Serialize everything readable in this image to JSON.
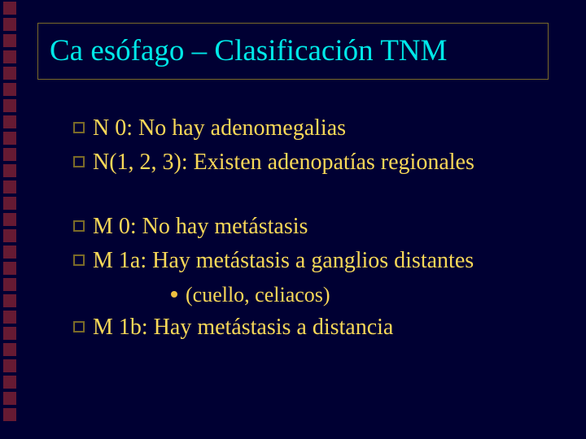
{
  "colors": {
    "background": "#000033",
    "title_border": "#7a6a28",
    "title_text": "#00e8e8",
    "body_text": "#f8d858",
    "bullet_border": "#7a6a28",
    "disc_fill": "#f0c040",
    "left_square": "#661a33"
  },
  "layout": {
    "left_square_count": 26,
    "title_fontsize": 37,
    "body_fontsize": 28,
    "sub_fontsize": 26
  },
  "title": "Ca esófago – Clasificación TNM",
  "groups": [
    {
      "lines": [
        {
          "text": "N 0: No hay adenomegalias"
        },
        {
          "text": "N(1, 2, 3): Existen adenopatías regionales"
        }
      ]
    },
    {
      "lines": [
        {
          "text": "M 0: No hay metástasis"
        },
        {
          "text": "M 1a: Hay metástasis a ganglios distantes",
          "sub": "(cuello, celiacos)"
        },
        {
          "text": "M 1b: Hay metástasis a distancia"
        }
      ]
    }
  ]
}
